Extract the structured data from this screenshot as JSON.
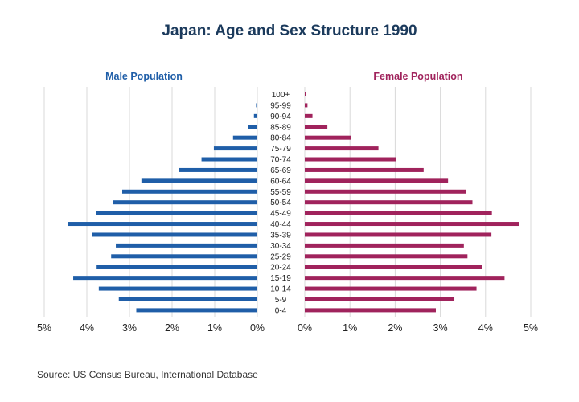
{
  "colors": {
    "male": "#1f5ea8",
    "female": "#a0235c",
    "title": "#1b3a5c",
    "grid": "#d9d9d9"
  },
  "source": "Source: US Census Bureau, International Database",
  "chart_data": {
    "type": "bar",
    "orientation": "horizontal",
    "title": "Japan: Age and Sex Structure 1990",
    "unit": "% of total population",
    "age_groups": [
      "100+",
      "95-99",
      "90-94",
      "85-89",
      "80-84",
      "75-79",
      "70-74",
      "65-69",
      "60-64",
      "55-59",
      "50-54",
      "45-49",
      "40-44",
      "35-39",
      "30-34",
      "25-29",
      "20-24",
      "15-19",
      "10-14",
      "5-9",
      "0-4"
    ],
    "panels": [
      {
        "name": "Male Population",
        "side": "left",
        "xlim": [
          0,
          5
        ],
        "ticks": [
          "0%",
          "1%",
          "2%",
          "3%",
          "4%",
          "5%"
        ],
        "values": [
          0.01,
          0.03,
          0.08,
          0.21,
          0.57,
          1.02,
          1.31,
          1.84,
          2.72,
          3.17,
          3.38,
          3.79,
          4.45,
          3.87,
          3.32,
          3.43,
          3.77,
          4.32,
          3.72,
          3.25,
          2.84
        ]
      },
      {
        "name": "Female Population",
        "side": "right",
        "xlim": [
          0,
          5
        ],
        "ticks": [
          "0%",
          "1%",
          "2%",
          "3%",
          "4%",
          "5%"
        ],
        "values": [
          0.02,
          0.06,
          0.17,
          0.5,
          1.03,
          1.63,
          2.02,
          2.63,
          3.17,
          3.57,
          3.71,
          4.14,
          4.75,
          4.13,
          3.52,
          3.6,
          3.92,
          4.42,
          3.8,
          3.31,
          2.9
        ]
      }
    ],
    "grid": true,
    "legend": "none"
  }
}
